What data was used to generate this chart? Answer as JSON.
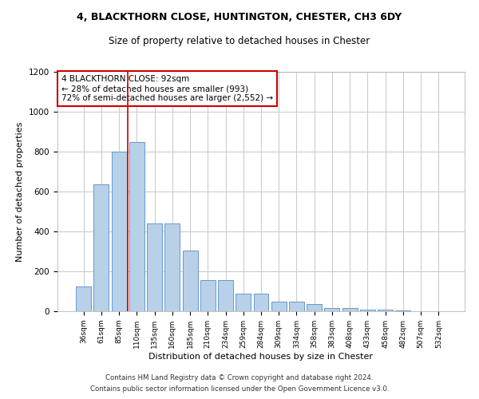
{
  "title1": "4, BLACKTHORN CLOSE, HUNTINGTON, CHESTER, CH3 6DY",
  "title2": "Size of property relative to detached houses in Chester",
  "xlabel": "Distribution of detached houses by size in Chester",
  "ylabel": "Number of detached properties",
  "categories": [
    "36sqm",
    "61sqm",
    "85sqm",
    "110sqm",
    "135sqm",
    "160sqm",
    "185sqm",
    "210sqm",
    "234sqm",
    "259sqm",
    "284sqm",
    "309sqm",
    "334sqm",
    "358sqm",
    "383sqm",
    "408sqm",
    "433sqm",
    "458sqm",
    "482sqm",
    "507sqm",
    "532sqm"
  ],
  "values": [
    125,
    635,
    800,
    850,
    440,
    440,
    305,
    155,
    155,
    90,
    90,
    50,
    50,
    35,
    15,
    15,
    10,
    10,
    5,
    2,
    1
  ],
  "bar_color": "#b8d0e8",
  "bar_edge_color": "#6699cc",
  "vline_x": 2.5,
  "annotation_text": "4 BLACKTHORN CLOSE: 92sqm\n← 28% of detached houses are smaller (993)\n72% of semi-detached houses are larger (2,552) →",
  "annotation_box_color": "#ffffff",
  "annotation_box_edge": "#cc0000",
  "vline_color": "#cc0000",
  "ylim": [
    0,
    1200
  ],
  "yticks": [
    0,
    200,
    400,
    600,
    800,
    1000,
    1200
  ],
  "footer1": "Contains HM Land Registry data © Crown copyright and database right 2024.",
  "footer2": "Contains public sector information licensed under the Open Government Licence v3.0.",
  "bg_color": "#ffffff",
  "grid_color": "#cccccc"
}
